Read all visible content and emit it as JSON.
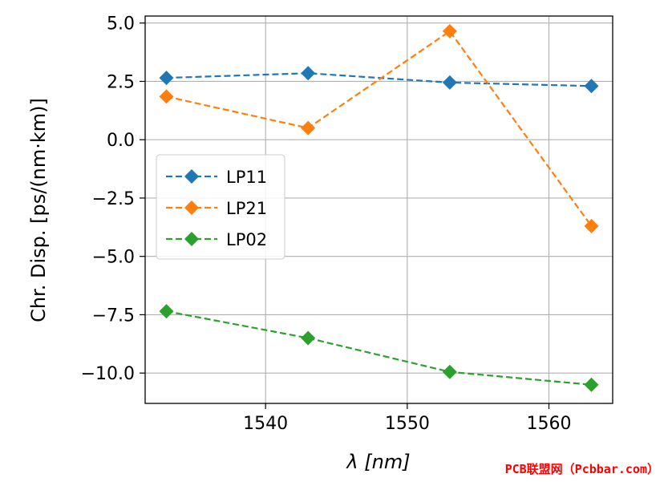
{
  "chart_data": {
    "type": "line",
    "title": "",
    "xlabel": "λ [nm]",
    "ylabel": "Chr. Disp. [ps/(nm·km)]",
    "x": [
      1533,
      1543,
      1553,
      1563
    ],
    "xlim": [
      1531.5,
      1564.5
    ],
    "ylim": [
      -11.3,
      5.3
    ],
    "xticks": [
      1540,
      1550,
      1560
    ],
    "yticks": [
      5.0,
      2.5,
      0.0,
      -2.5,
      -5.0,
      -7.5,
      -10.0
    ],
    "ytick_labels": [
      "5.0",
      "2.5",
      "0.0",
      "−2.5",
      "−5.0",
      "−7.5",
      "−10.0"
    ],
    "grid": true,
    "legend_position": "center-left",
    "series": [
      {
        "name": "LP11",
        "color": "#1f77b4",
        "values": [
          2.65,
          2.85,
          2.45,
          2.3
        ]
      },
      {
        "name": "LP21",
        "color": "#ff7f0e",
        "values": [
          1.85,
          0.5,
          4.65,
          -3.7
        ]
      },
      {
        "name": "LP02",
        "color": "#2ca02c",
        "values": [
          -7.35,
          -8.5,
          -9.95,
          -10.5
        ]
      }
    ]
  },
  "watermark": "PCB联盟网（Pcbbar.com）"
}
